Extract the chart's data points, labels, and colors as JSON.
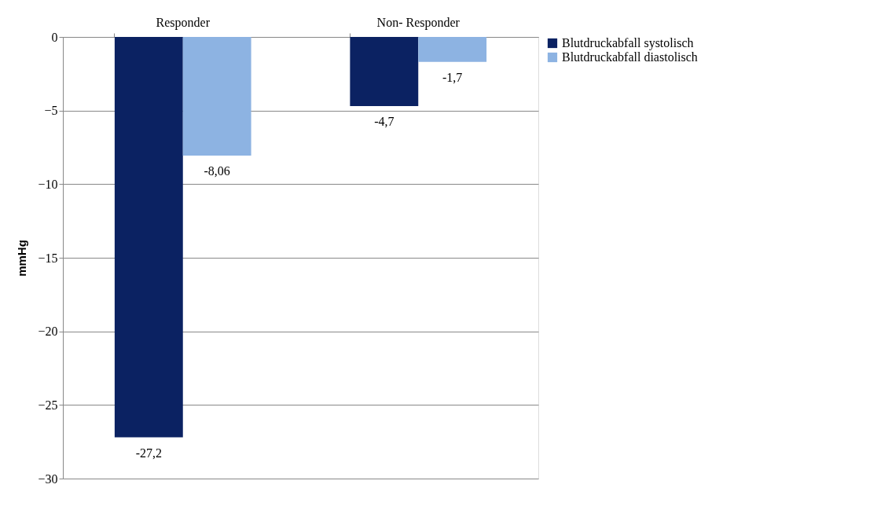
{
  "chart_data": {
    "type": "bar",
    "ylabel": "mmHg",
    "categories": [
      "Responder",
      "Non- Responder"
    ],
    "series": [
      {
        "name": "Blutdruckabfall systolisch",
        "color": "#0b2262",
        "values": [
          -27.2,
          -4.7
        ],
        "value_labels": [
          "-27,2",
          "-4,7"
        ]
      },
      {
        "name": "Blutdruckabfall diastolisch",
        "color": "#8db3e2",
        "values": [
          -8.06,
          -1.7
        ],
        "value_labels": [
          "-8,06",
          "-1,7"
        ]
      }
    ],
    "ylim": [
      -30,
      0
    ],
    "yticks": [
      -30,
      -25,
      -20,
      -15,
      -10,
      -5,
      0
    ],
    "grid": "y",
    "legend": "right"
  }
}
